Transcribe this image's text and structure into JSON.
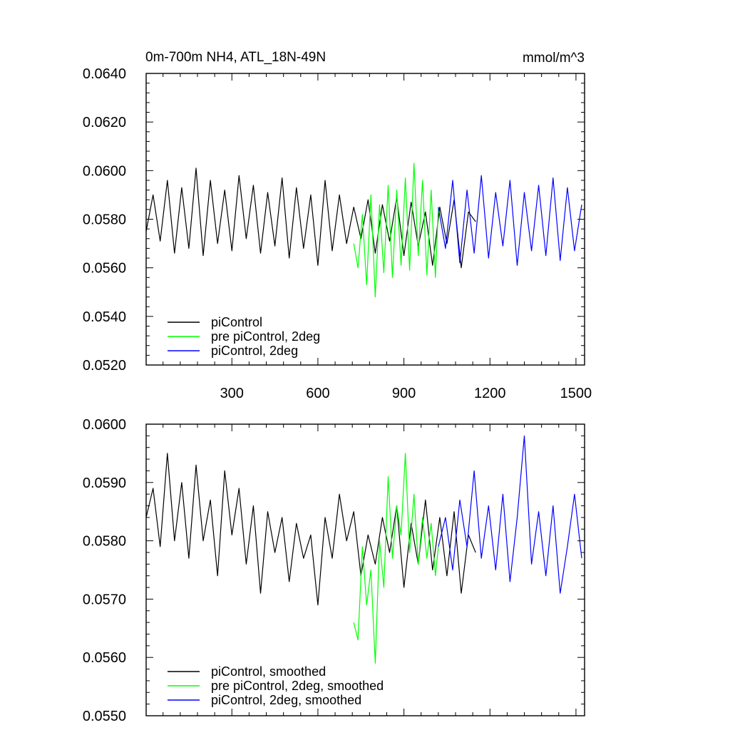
{
  "chart_data": [
    {
      "type": "line",
      "title": "0m-700m NH4, ATL_18N-49N",
      "units": "mmol/m^3",
      "xlim": [
        1,
        1530
      ],
      "ylim": [
        0.052,
        0.064
      ],
      "x_tick_values": [
        300,
        600,
        900,
        1200,
        1500
      ],
      "x_tick_labels": [
        "300",
        "600",
        "900",
        "1200",
        "1500"
      ],
      "y_tick_values": [
        0.052,
        0.054,
        0.056,
        0.058,
        0.06,
        0.062,
        0.064
      ],
      "y_tick_labels": [
        "0.0520",
        "0.0540",
        "0.0560",
        "0.0580",
        "0.0600",
        "0.0620",
        "0.0640"
      ],
      "grid": false,
      "legend_position": "bottom-left",
      "series": [
        {
          "name": "piControl",
          "color": "#000000",
          "x": [
            1,
            25,
            50,
            75,
            100,
            125,
            150,
            175,
            200,
            225,
            250,
            275,
            300,
            325,
            350,
            375,
            400,
            425,
            450,
            475,
            500,
            525,
            550,
            575,
            600,
            625,
            650,
            675,
            700,
            725,
            750,
            775,
            800,
            825,
            850,
            875,
            900,
            925,
            950,
            975,
            1000,
            1025,
            1050,
            1075,
            1100,
            1125,
            1150
          ],
          "values": [
            0.0575,
            0.059,
            0.0571,
            0.0596,
            0.0566,
            0.0593,
            0.0568,
            0.0601,
            0.0565,
            0.0596,
            0.057,
            0.0592,
            0.0567,
            0.0598,
            0.0572,
            0.0594,
            0.0566,
            0.0591,
            0.0569,
            0.0597,
            0.0564,
            0.0593,
            0.0568,
            0.059,
            0.0561,
            0.0596,
            0.0567,
            0.059,
            0.057,
            0.0585,
            0.0572,
            0.0588,
            0.0566,
            0.0586,
            0.0571,
            0.0589,
            0.0565,
            0.0587,
            0.0569,
            0.0583,
            0.0561,
            0.0585,
            0.057,
            0.0588,
            0.056,
            0.0583,
            0.0579
          ]
        },
        {
          "name": "pre piControl, 2deg",
          "color": "#00ff00",
          "x": [
            725,
            740,
            755,
            770,
            785,
            800,
            815,
            830,
            845,
            860,
            875,
            890,
            905,
            920,
            935,
            950,
            965,
            980,
            995,
            1010,
            1020
          ],
          "values": [
            0.057,
            0.056,
            0.0582,
            0.0553,
            0.059,
            0.0548,
            0.0586,
            0.0558,
            0.0594,
            0.0556,
            0.0592,
            0.0561,
            0.0597,
            0.0559,
            0.0603,
            0.0565,
            0.0596,
            0.0557,
            0.0592,
            0.0556,
            0.0585
          ]
        },
        {
          "name": "piControl, 2deg",
          "color": "#0000ff",
          "x": [
            1020,
            1045,
            1070,
            1095,
            1120,
            1145,
            1170,
            1195,
            1220,
            1245,
            1270,
            1295,
            1320,
            1345,
            1370,
            1395,
            1420,
            1445,
            1470,
            1495,
            1520
          ],
          "values": [
            0.0585,
            0.0568,
            0.0596,
            0.0562,
            0.0592,
            0.0566,
            0.0598,
            0.0564,
            0.0591,
            0.0569,
            0.0596,
            0.0561,
            0.0591,
            0.0567,
            0.0594,
            0.0565,
            0.0597,
            0.0563,
            0.0593,
            0.0567,
            0.0586
          ]
        }
      ]
    },
    {
      "type": "line",
      "xlim": [
        1,
        1530
      ],
      "ylim": [
        0.055,
        0.06
      ],
      "x_tick_values": [
        300,
        600,
        900,
        1200,
        1500
      ],
      "y_tick_values": [
        0.055,
        0.056,
        0.057,
        0.058,
        0.059,
        0.06
      ],
      "y_tick_labels": [
        "0.0550",
        "0.0560",
        "0.0570",
        "0.0580",
        "0.0590",
        "0.0600"
      ],
      "grid": false,
      "legend_position": "bottom-left",
      "series": [
        {
          "name": "piControl, smoothed",
          "color": "#000000",
          "x": [
            1,
            25,
            50,
            75,
            100,
            125,
            150,
            175,
            200,
            225,
            250,
            275,
            300,
            325,
            350,
            375,
            400,
            425,
            450,
            475,
            500,
            525,
            550,
            575,
            600,
            625,
            650,
            675,
            700,
            725,
            750,
            775,
            800,
            825,
            850,
            875,
            900,
            925,
            950,
            975,
            1000,
            1025,
            1050,
            1075,
            1100,
            1125,
            1150
          ],
          "values": [
            0.0584,
            0.0589,
            0.0579,
            0.0595,
            0.058,
            0.059,
            0.0577,
            0.0593,
            0.058,
            0.0587,
            0.0574,
            0.0592,
            0.0581,
            0.0589,
            0.0576,
            0.0586,
            0.0571,
            0.0585,
            0.0578,
            0.0584,
            0.0573,
            0.0583,
            0.0577,
            0.0581,
            0.0569,
            0.0584,
            0.0577,
            0.0588,
            0.058,
            0.0585,
            0.0574,
            0.0581,
            0.0576,
            0.0584,
            0.0578,
            0.0586,
            0.0572,
            0.0583,
            0.0576,
            0.0587,
            0.0575,
            0.0584,
            0.0574,
            0.0585,
            0.0571,
            0.0581,
            0.0578
          ]
        },
        {
          "name": "pre piControl, 2deg, smoothed",
          "color": "#00ff00",
          "x": [
            725,
            740,
            755,
            770,
            785,
            800,
            815,
            830,
            845,
            860,
            875,
            890,
            905,
            920,
            935,
            950,
            965,
            980,
            995,
            1010,
            1020
          ],
          "values": [
            0.0566,
            0.0563,
            0.0579,
            0.0569,
            0.0575,
            0.0559,
            0.058,
            0.0572,
            0.0591,
            0.0577,
            0.0586,
            0.0581,
            0.0595,
            0.0578,
            0.0588,
            0.0576,
            0.0584,
            0.0577,
            0.0583,
            0.0574,
            0.0579
          ]
        },
        {
          "name": "piControl, 2deg, smoothed",
          "color": "#0000ff",
          "x": [
            1020,
            1045,
            1070,
            1095,
            1120,
            1145,
            1170,
            1195,
            1220,
            1245,
            1270,
            1295,
            1320,
            1345,
            1370,
            1395,
            1420,
            1445,
            1470,
            1495,
            1520
          ],
          "values": [
            0.0579,
            0.0584,
            0.0575,
            0.0587,
            0.0579,
            0.0592,
            0.0577,
            0.0586,
            0.0575,
            0.0588,
            0.0573,
            0.0584,
            0.0598,
            0.0576,
            0.0585,
            0.0574,
            0.0586,
            0.0571,
            0.0579,
            0.0588,
            0.0577
          ]
        }
      ]
    }
  ]
}
